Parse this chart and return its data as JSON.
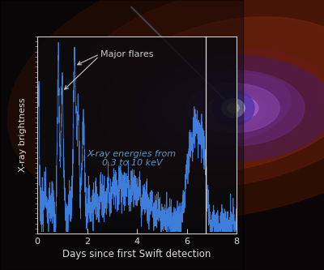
{
  "background_color": "#0a0608",
  "plot_bg_color": "#0d0d12",
  "plot_bg_alpha": 0.88,
  "line_color": "#4488ee",
  "axis_color": "#cccccc",
  "tick_color": "#cccccc",
  "label_color": "#dddddd",
  "annotation_color": "#cccccc",
  "xray_label_color": "#5599cc",
  "xlabel": "Days since first Swift detection",
  "ylabel": "X-ray brightness",
  "xlim": [
    0,
    8
  ],
  "ylim": [
    0,
    1
  ],
  "xticks": [
    0,
    2,
    4,
    6,
    8
  ],
  "major_flares_label": "Major flares",
  "xray_label_line1": "X-ray energies from",
  "xray_label_line2": "0.3 to 10 keV",
  "xlabel_fontsize": 8.5,
  "ylabel_fontsize": 8,
  "annotation_fontsize": 8,
  "xray_fontsize": 8,
  "vertical_line_x": 6.75,
  "vertical_line_color": "#ffffff",
  "nebula_colors": [
    "#1a0808",
    "#2a1008",
    "#3d1a10",
    "#5c2a18",
    "#7a3520",
    "#220820",
    "#350a30",
    "#1a0520"
  ]
}
